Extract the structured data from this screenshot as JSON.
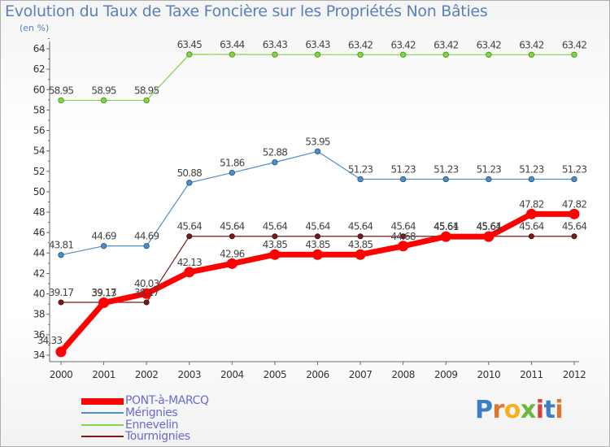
{
  "chart_data": {
    "type": "line",
    "title": "Evolution du Taux de Taxe Foncière sur les Propriétés Non Bâties",
    "subtitle": "(en %)",
    "x": [
      2000,
      2001,
      2002,
      2003,
      2004,
      2005,
      2006,
      2007,
      2008,
      2009,
      2010,
      2011,
      2012
    ],
    "x_tick_labels": [
      "2000",
      "2001",
      "2002",
      "2003",
      "2004",
      "2005",
      "2006",
      "2007",
      "2008",
      "2009",
      "2010",
      "2011",
      "2012"
    ],
    "ylim": [
      34,
      64
    ],
    "y_tick_labels": [
      "34",
      "36",
      "38",
      "40",
      "42",
      "44",
      "46",
      "48",
      "50",
      "52",
      "54",
      "56",
      "58",
      "60",
      "62",
      "64"
    ],
    "grid": false,
    "legend_position": "bottom-left",
    "series": [
      {
        "name": "PONT-à-MARCQ",
        "color": "#ff0000",
        "values": [
          34.33,
          39.13,
          40.03,
          42.13,
          42.96,
          43.85,
          43.85,
          43.85,
          44.68,
          45.61,
          45.61,
          47.82,
          47.82
        ],
        "labels": [
          "34.33",
          "39.13",
          "40.03",
          "42.13",
          "42.96",
          "43.85",
          "43.85",
          "43.85",
          "44.68",
          "45.61",
          "45.61",
          "47.82",
          "47.82"
        ]
      },
      {
        "name": "Mérignies",
        "color": "#4f8fc8",
        "values": [
          43.81,
          44.69,
          44.69,
          50.88,
          51.86,
          52.88,
          53.95,
          51.23,
          51.23,
          51.23,
          51.23,
          51.23,
          51.23
        ],
        "labels": [
          "43.81",
          "44.69",
          "44.69",
          "50.88",
          "51.86",
          "52.88",
          "53.95",
          "51.23",
          "51.23",
          "51.23",
          "51.23",
          "51.23",
          "51.23"
        ]
      },
      {
        "name": "Ennevelin",
        "color": "#84d445",
        "values": [
          58.95,
          58.95,
          58.95,
          63.45,
          63.44,
          63.43,
          63.43,
          63.42,
          63.42,
          63.42,
          63.42,
          63.42,
          63.42
        ],
        "labels": [
          "58.95",
          "58.95",
          "58.95",
          "63.45",
          "63.44",
          "63.43",
          "63.43",
          "63.42",
          "63.42",
          "63.42",
          "63.42",
          "63.42",
          "63.42"
        ]
      },
      {
        "name": "Tourmignies",
        "color": "#7a1a1a",
        "values": [
          39.17,
          39.17,
          39.17,
          45.64,
          45.64,
          45.64,
          45.64,
          45.64,
          45.64,
          45.64,
          45.64,
          45.64,
          45.64
        ],
        "labels": [
          "39.17",
          "39.17",
          "39.17",
          "45.64",
          "45.64",
          "45.64",
          "45.64",
          "45.64",
          "45.64",
          "45.64",
          "45.64",
          "45.64",
          "45.64"
        ]
      }
    ]
  },
  "logo": {
    "text": "Proxiti",
    "letters": [
      "P",
      "r",
      "o",
      "x",
      "i",
      "t",
      "i"
    ],
    "colors": [
      "#3a7fc6",
      "#e0742c",
      "#f3b21a",
      "#6ab83a",
      "#d6423a",
      "#3a7fc6",
      "#e0742c"
    ]
  }
}
